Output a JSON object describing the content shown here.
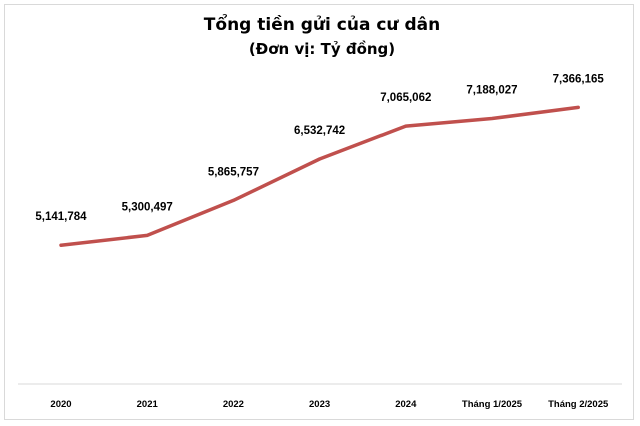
{
  "chart_data": {
    "type": "line",
    "title": "Tổng tiền gửi của cư dân",
    "subtitle": "(Đơn vị: Tỷ đồng)",
    "xlabel": "",
    "ylabel": "",
    "categories": [
      "2020",
      "2021",
      "2022",
      "2023",
      "2024",
      "Tháng 1/2025",
      "Tháng 2/2025"
    ],
    "series": [
      {
        "values": [
          5141784,
          5300497,
          5865757,
          6532742,
          7065062,
          7188027,
          7366165
        ],
        "data_labels": [
          "5,141,784",
          "5,300,497",
          "5,865,757",
          "6,532,742",
          "7,065,062",
          "7,188,027",
          "7,366,165"
        ],
        "color": "#c0504d"
      }
    ],
    "ylim": [
      0,
      8000000
    ],
    "grid": false,
    "legend": "none",
    "colors": {
      "line": "#c0504d",
      "axis": "#d9d9d9",
      "frame": "#d9d9d9",
      "text": "#000000"
    }
  }
}
